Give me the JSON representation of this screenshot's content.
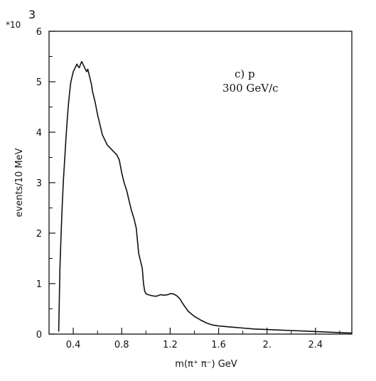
{
  "chart_data": {
    "type": "line",
    "title": "",
    "xlabel": "m(π⁺ π⁻)  GeV",
    "ylabel": "events/10 MeV",
    "y_multiplier": {
      "prefix": "*10",
      "exponent": "3"
    },
    "annotation": {
      "line1": "c) p",
      "line2": "300 GeV/c"
    },
    "xlim": [
      0.2,
      2.7
    ],
    "ylim": [
      0,
      6
    ],
    "x_ticks": [
      {
        "value": 0.4,
        "label": "0.4"
      },
      {
        "value": 0.8,
        "label": "0.8"
      },
      {
        "value": 1.2,
        "label": "1.2"
      },
      {
        "value": 1.6,
        "label": "1.6"
      },
      {
        "value": 2.0,
        "label": "2."
      },
      {
        "value": 2.4,
        "label": "2.4"
      }
    ],
    "y_ticks": [
      {
        "value": 0,
        "label": "0"
      },
      {
        "value": 1,
        "label": "1"
      },
      {
        "value": 2,
        "label": "2"
      },
      {
        "value": 3,
        "label": "3"
      },
      {
        "value": 4,
        "label": "4"
      },
      {
        "value": 5,
        "label": "5"
      },
      {
        "value": 6,
        "label": "6"
      }
    ],
    "grid": false,
    "legend": "none",
    "series": [
      {
        "color": "#111111",
        "x": [
          0.28,
          0.29,
          0.3,
          0.31,
          0.32,
          0.33,
          0.34,
          0.35,
          0.36,
          0.37,
          0.38,
          0.39,
          0.4,
          0.41,
          0.42,
          0.43,
          0.44,
          0.45,
          0.46,
          0.47,
          0.48,
          0.49,
          0.5,
          0.51,
          0.52,
          0.53,
          0.54,
          0.55,
          0.56,
          0.58,
          0.6,
          0.62,
          0.64,
          0.66,
          0.68,
          0.7,
          0.72,
          0.74,
          0.76,
          0.78,
          0.8,
          0.82,
          0.84,
          0.86,
          0.88,
          0.9,
          0.92,
          0.94,
          0.95,
          0.96,
          0.97,
          0.98,
          0.99,
          1.0,
          1.02,
          1.05,
          1.08,
          1.1,
          1.12,
          1.15,
          1.18,
          1.2,
          1.22,
          1.24,
          1.26,
          1.28,
          1.3,
          1.32,
          1.35,
          1.4,
          1.45,
          1.5,
          1.55,
          1.6,
          1.7,
          1.8,
          1.9,
          2.0,
          2.1,
          2.2,
          2.3,
          2.4,
          2.5,
          2.6,
          2.7
        ],
        "y": [
          0.05,
          1.3,
          2.0,
          2.6,
          3.1,
          3.5,
          3.9,
          4.25,
          4.55,
          4.8,
          5.0,
          5.1,
          5.2,
          5.25,
          5.3,
          5.35,
          5.3,
          5.28,
          5.35,
          5.4,
          5.35,
          5.3,
          5.25,
          5.2,
          5.25,
          5.15,
          5.05,
          4.95,
          4.8,
          4.6,
          4.35,
          4.15,
          3.95,
          3.85,
          3.75,
          3.7,
          3.65,
          3.6,
          3.55,
          3.45,
          3.2,
          3.0,
          2.85,
          2.65,
          2.45,
          2.3,
          2.1,
          1.6,
          1.5,
          1.4,
          1.3,
          1.0,
          0.85,
          0.8,
          0.78,
          0.76,
          0.75,
          0.76,
          0.78,
          0.77,
          0.78,
          0.8,
          0.8,
          0.78,
          0.75,
          0.7,
          0.62,
          0.55,
          0.45,
          0.35,
          0.28,
          0.22,
          0.18,
          0.16,
          0.14,
          0.12,
          0.1,
          0.09,
          0.08,
          0.07,
          0.06,
          0.05,
          0.04,
          0.03,
          0.02
        ]
      }
    ]
  }
}
